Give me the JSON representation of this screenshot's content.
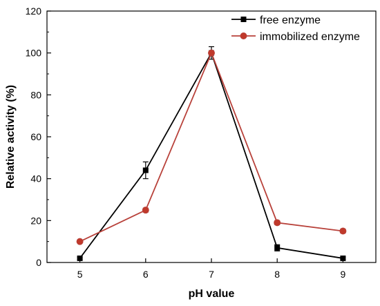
{
  "chart_data": {
    "type": "line",
    "title": "",
    "xlabel": "pH value",
    "ylabel": "Relative activity (%)",
    "xlim": [
      4.5,
      9.5
    ],
    "ylim": [
      0,
      120
    ],
    "x": [
      5,
      6,
      7,
      8,
      9
    ],
    "xticks": [
      "5",
      "6",
      "7",
      "8",
      "9"
    ],
    "yticks": [
      "0",
      "20",
      "40",
      "60",
      "80",
      "100",
      "120"
    ],
    "grid": false,
    "legend_position": "top-right",
    "series": [
      {
        "name": "free enzyme",
        "color": "#000000",
        "marker": "square",
        "values": [
          2,
          44,
          100,
          7,
          2
        ],
        "errors": [
          0.5,
          4,
          3,
          1.5,
          0.5
        ]
      },
      {
        "name": "immobilized enzyme",
        "color": "#b8413a",
        "marker": "circle",
        "values": [
          10,
          25,
          100,
          19,
          15
        ],
        "errors": [
          0.5,
          1,
          1,
          1,
          1
        ]
      }
    ]
  }
}
